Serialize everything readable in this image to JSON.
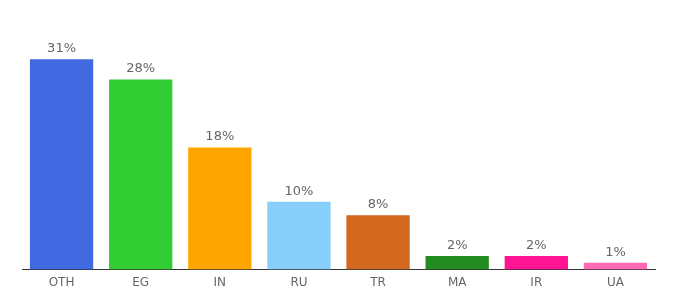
{
  "chart_data": {
    "type": "bar",
    "categories": [
      "OTH",
      "EG",
      "IN",
      "RU",
      "TR",
      "MA",
      "IR",
      "UA"
    ],
    "values": [
      31,
      28,
      18,
      10,
      8,
      2,
      2,
      1
    ],
    "value_labels": [
      "31%",
      "28%",
      "18%",
      "10%",
      "8%",
      "2%",
      "2%",
      "1%"
    ],
    "colors": [
      "#4169e1",
      "#32cd32",
      "#ffa500",
      "#87cefa",
      "#d2691e",
      "#228b22",
      "#ff1493",
      "#ff69b4"
    ],
    "data_labels": true,
    "tick_labels": "x",
    "grid": false
  }
}
